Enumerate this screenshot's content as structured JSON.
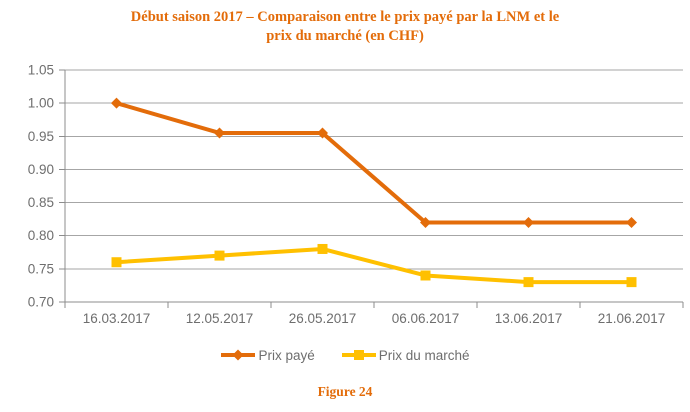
{
  "title_lines": [
    "Début saison 2017 – Comparaison entre le prix payé par la LNM et le",
    "prix du marché (en CHF)"
  ],
  "figure_caption": "Figure 24",
  "colors": {
    "title_text": "#E36C0A",
    "caption_text": "#E36C0A",
    "axis_line": "#8C8C8C",
    "gridline": "#A6A6A6",
    "axis_text": "#6E6E6E",
    "legend_text": "#6E6E6E"
  },
  "chart_data": {
    "type": "line",
    "categories": [
      "16.03.2017",
      "12.05.2017",
      "26.05.2017",
      "06.06.2017",
      "13.06.2017",
      "21.06.2017"
    ],
    "series": [
      {
        "name": "Prix payé",
        "values": [
          1.0,
          0.955,
          0.955,
          0.82,
          0.82,
          0.82
        ],
        "color": "#E36C0A",
        "marker": "diamond"
      },
      {
        "name": "Prix du marché",
        "values": [
          0.76,
          0.77,
          0.78,
          0.74,
          0.73,
          0.73
        ],
        "color": "#FFC000",
        "marker": "square"
      }
    ],
    "ylim": [
      0.7,
      1.05
    ],
    "ytick_step": 0.05,
    "ytick_labels": [
      "0.70",
      "0.75",
      "0.80",
      "0.85",
      "0.90",
      "0.95",
      "1.00",
      "1.05"
    ],
    "grid": true,
    "legend_position": "bottom"
  }
}
